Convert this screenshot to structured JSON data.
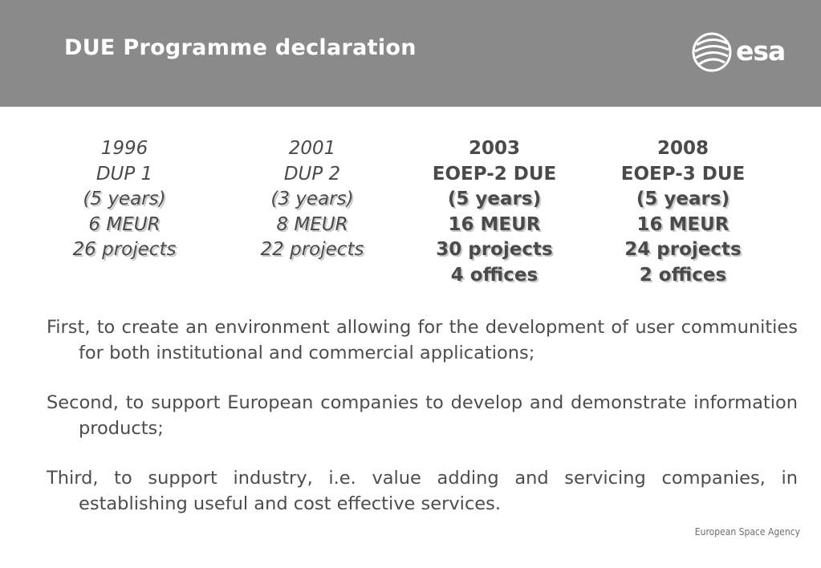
{
  "slide": {
    "title": "DUE Programme declaration",
    "logo_text": "esa",
    "footer": "European Space Agency"
  },
  "programmes": [
    {
      "year": "1996",
      "name": "DUP 1",
      "duration": "(5 years)",
      "budget": "6 MEUR",
      "projects": "26 projects"
    },
    {
      "year": "2001",
      "name": "DUP 2",
      "duration": "(3 years)",
      "budget": "8 MEUR",
      "projects": "22 projects"
    },
    {
      "year": "2003",
      "name": "EOEP-2 DUE",
      "duration": "(5 years)",
      "budget": "16 MEUR",
      "projects": "30 projects",
      "offices": "4 offices"
    },
    {
      "year": "2008",
      "name": "EOEP-3 DUE",
      "duration": "(5 years)",
      "budget": "16 MEUR",
      "projects": "24 projects",
      "offices": "2 offices"
    }
  ],
  "objectives": [
    "First, to create an environment allowing for the development of user communities for both institutional and commercial applications;",
    "Second, to support European companies to develop and demonstrate information products;",
    "Third, to support industry, i.e. value adding and servicing companies, in establishing useful and cost effective services."
  ],
  "colors": {
    "header_bg": "#8a8a8a",
    "text": "#4a4a4a",
    "shadow": "#c9c9c9"
  }
}
